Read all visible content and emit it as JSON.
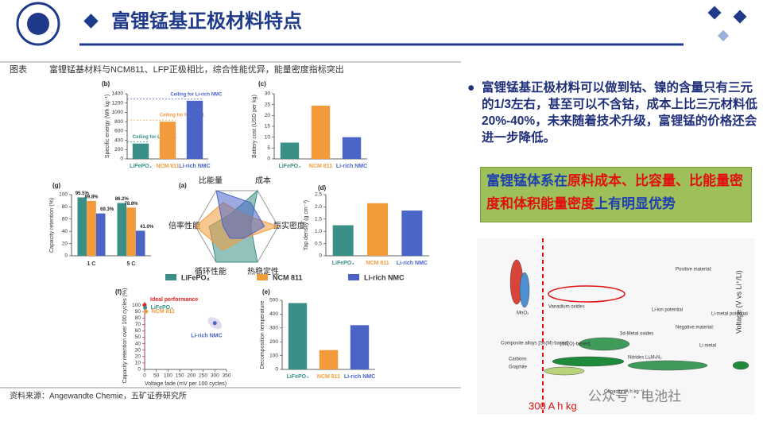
{
  "header": {
    "title": "富锂锰基正极材料特点"
  },
  "figure": {
    "caption_label": "图表",
    "caption": "富锂锰基材料与NCM811、LFP正极相比，综合性能优异，能量密度指标突出",
    "source": "资料来源：Angewandte  Chemie，五矿证券研究所",
    "legend": [
      {
        "name": "LiFePO₄",
        "color": "#3a8f86"
      },
      {
        "name": "NCM 811",
        "color": "#f39a3b"
      },
      {
        "name": "Li-rich NMC",
        "color": "#4a64c8"
      }
    ],
    "panels": [
      {
        "label": "(b)",
        "type": "bar",
        "ylabel": "Specific energy (Wh kg⁻¹)",
        "categories": [
          "LiFePO₄",
          "NCM 811",
          "Li-rich NMC"
        ],
        "colors": [
          "#3a8f86",
          "#f39a3b",
          "#4a64c8"
        ],
        "values": [
          330,
          800,
          1250
        ],
        "ylim": [
          0,
          1400
        ],
        "yticks": [
          0,
          200,
          400,
          600,
          800,
          1000,
          1200,
          1400
        ],
        "annotations": [
          "Ceiling for LiFePO₄",
          "Ceiling for NCM 811",
          "Ceiling for Li-rich NMC"
        ]
      },
      {
        "label": "(c)",
        "type": "bar",
        "ylabel": "Battery cost (USD per kg)",
        "categories": [
          "LiFePO₄",
          "NCM 811",
          "Li-rich NMC"
        ],
        "colors": [
          "#3a8f86",
          "#f39a3b",
          "#4a64c8"
        ],
        "values": [
          7.5,
          24.5,
          10
        ],
        "ylim": [
          0,
          30
        ],
        "yticks": [
          0,
          5,
          10,
          15,
          20,
          25,
          30
        ]
      },
      {
        "label": "(g)",
        "type": "grouped",
        "ylabel": "Capacity retention (%)",
        "categories": [
          "1 C",
          "5 C"
        ],
        "ylim": [
          0,
          100
        ],
        "yticks": [
          0,
          20,
          40,
          60,
          80,
          100
        ],
        "series": [
          {
            "color": "#3a8f86",
            "values": [
              95.5,
              86.2
            ],
            "value_labels": [
              "95.5%",
              "86.2%"
            ]
          },
          {
            "color": "#f39a3b",
            "values": [
              89.8,
              78.8
            ],
            "value_labels": [
              "89.8%",
              "78.8%"
            ]
          },
          {
            "color": "#4a64c8",
            "values": [
              69.3,
              41.0
            ],
            "value_labels": [
              "69.3%",
              "41.0%"
            ]
          }
        ]
      },
      {
        "label": "(a)",
        "type": "radar",
        "axes": [
          "比能量",
          "成本",
          "振实密度",
          "热稳定性",
          "循环性能",
          "倍率性能"
        ],
        "rlim": [
          0,
          3
        ],
        "series": [
          {
            "color": "#3a8f86",
            "values": [
              1,
              3,
              1,
              3,
              3,
              2
            ]
          },
          {
            "color": "#f39a3b",
            "values": [
              2,
              1,
              3,
              1,
              2,
              3
            ]
          },
          {
            "color": "#4a64c8",
            "values": [
              3,
              2,
              2,
              1,
              1,
              1
            ]
          }
        ]
      },
      {
        "label": "(d)",
        "type": "bar",
        "ylabel": "Tap density (g cm⁻³)",
        "categories": [
          "LiFePO₄",
          "NCM 811",
          "Li-rich NMC"
        ],
        "colors": [
          "#3a8f86",
          "#f39a3b",
          "#4a64c8"
        ],
        "values": [
          1.25,
          2.15,
          1.85
        ],
        "ylim": [
          0,
          2.5
        ],
        "yticks": [
          0,
          {
            "value": 0.5,
            "label": "0.5"
          },
          {
            "value": 1,
            "label": "1.0"
          },
          {
            "value": 1.5,
            "label": "1.5"
          },
          {
            "value": 2,
            "label": "2.0"
          },
          {
            "value": 2.5,
            "label": "2.5"
          }
        ]
      },
      {
        "label": "(f)",
        "type": "scatter",
        "xlabel": "Voltage fade (mV per 100 cycles)",
        "ylabel": "Capacity retention over 100 cycles (%)",
        "xlim": [
          0,
          350
        ],
        "xticks": [
          0,
          50,
          100,
          150,
          200,
          250,
          300,
          350
        ],
        "ylim": [
          0,
          105
        ],
        "yticks": [
          0,
          10,
          20,
          30,
          40,
          50,
          60,
          70,
          80,
          90,
          100
        ],
        "series": [
          {
            "name": "Ideal performance",
            "color": "#e02020",
            "x": [
              0
            ],
            "y": [
              100
            ]
          },
          {
            "name": "LiFePO₄",
            "color": "#3a8f86",
            "x": [
              2
            ],
            "y": [
              96
            ]
          },
          {
            "name": "NCM 811",
            "color": "#f39a3b",
            "x": [
              6
            ],
            "y": [
              90
            ]
          },
          {
            "name": "Li-rich NMC",
            "color": "#4a64c8",
            "x": [
              300
            ],
            "y": [
              72
            ]
          }
        ]
      },
      {
        "label": "(e)",
        "type": "bar",
        "ylabel": "Decomposition temperature",
        "categories": [
          "LiFePO₄",
          "NCM 811",
          "Li-rich NMC"
        ],
        "colors": [
          "#3a8f86",
          "#f39a3b",
          "#4a64c8"
        ],
        "values": [
          480,
          140,
          320
        ],
        "ylim": [
          0,
          500
        ],
        "yticks": [
          0,
          100,
          200,
          300,
          400,
          500
        ]
      }
    ]
  },
  "bullet": "富锂锰基正极材料可以做到钴、镍的含量只有三元的1/3左右，甚至可以不含钴，成本上比三元材料低20%-40%，未来随着技术升级，富锂锰的价格还会进一步降低。",
  "highlight": [
    {
      "text": "富锂锰体系在",
      "color": "#1f3fb0"
    },
    {
      "text": "原料成本、比容量、比能量密度和体积能量密度",
      "color": "#e01010"
    },
    {
      "text": "上有明显优势",
      "color": "#1f3fb0"
    }
  ],
  "right_image": {
    "labels": [
      "MnO₂",
      "Vanadium oxides",
      "3d-Metal oxides",
      "Nitrides LiₓMₙN₂",
      "Composite alloys [Sn(M)-based]",
      "[Sn(O)-based]",
      "Carbons",
      "Graphite",
      "Li-ion potential",
      "Li-metal potential",
      "Li metal",
      "Positive material:",
      "Negative material:",
      "Voltage (V vs Li⁺/Li)",
      "Capacity (A h kg⁻¹)"
    ],
    "marker": "300 A h kg",
    "watermark": "公众号 · 电池社"
  }
}
